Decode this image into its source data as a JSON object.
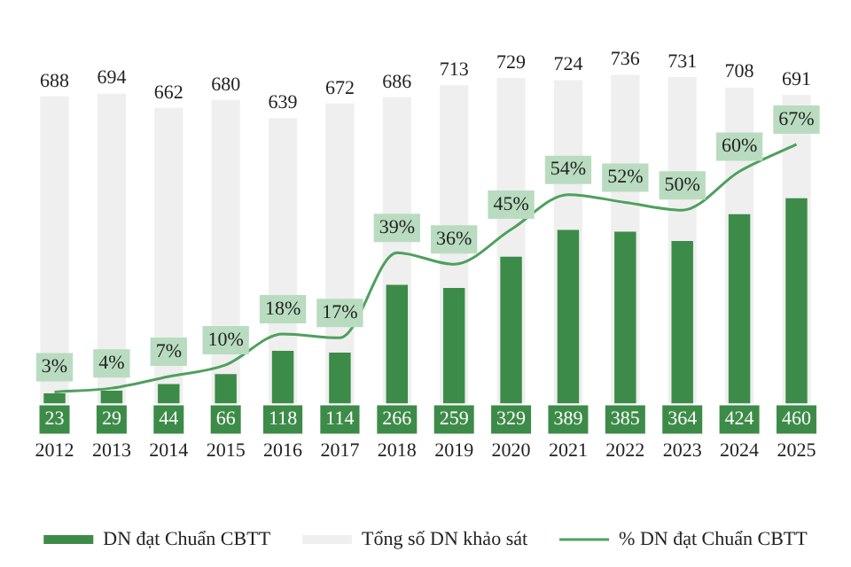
{
  "chart_data": {
    "type": "bar",
    "categories": [
      "2012",
      "2013",
      "2014",
      "2015",
      "2016",
      "2017",
      "2018",
      "2019",
      "2020",
      "2021",
      "2022",
      "2023",
      "2024",
      "2025"
    ],
    "series": [
      {
        "name": "DN đạt Chuẩn CBTT",
        "color": "#3d8b48",
        "values": [
          23,
          29,
          44,
          66,
          118,
          114,
          266,
          259,
          329,
          389,
          385,
          364,
          424,
          460
        ]
      },
      {
        "name": "Tổng số DN khảo sát",
        "color": "#efefef",
        "values": [
          688,
          694,
          662,
          680,
          639,
          672,
          686,
          713,
          729,
          724,
          736,
          731,
          708,
          691
        ]
      },
      {
        "name": "% DN đạt Chuẩn CBTT",
        "type": "line",
        "axis": "y2",
        "color": "#4ea05c",
        "values": [
          3,
          4,
          7,
          10,
          18,
          17,
          39,
          36,
          45,
          54,
          52,
          50,
          60,
          67
        ],
        "value_labels": [
          "3%",
          "4%",
          "7%",
          "10%",
          "18%",
          "17%",
          "39%",
          "36%",
          "45%",
          "54%",
          "52%",
          "50%",
          "60%",
          "67%"
        ]
      }
    ],
    "data_labels": true,
    "legend": "bottom",
    "grid": false,
    "marker": "none"
  }
}
